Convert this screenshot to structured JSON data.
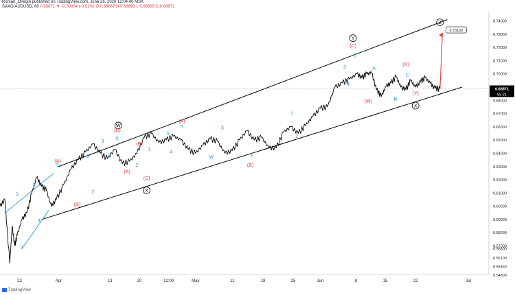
{
  "header": {
    "line1": "Roman_Onegin published on TradingView.com, June 26, 2020 12:04:40 MSK",
    "symbol": "SAXO:AUDUSD, 60",
    "ohlc": "0.68871 ▼ -0.00004 (-0.01%) O:0.68867 H:0.68893 L:0.68865 C:0.68871"
  },
  "footer": {
    "brand": "TradingView"
  },
  "colors": {
    "up_wave": "#2196f3",
    "corrective": "#e53935",
    "line": "#000000",
    "price_tag": "#000000"
  },
  "chart_data": {
    "type": "line",
    "title": "",
    "xlabel": "",
    "ylabel": "",
    "ylim": [
      0.5485,
      0.7465
    ],
    "y_ticks": [
      "0.74000",
      "0.73000",
      "0.72000",
      "0.71000",
      "0.70000",
      "0.69000",
      "0.68000",
      "0.67000",
      "0.66000",
      "0.65000",
      "0.64000",
      "0.63000",
      "0.62000",
      "0.61000",
      "0.60000",
      "0.59000",
      "0.58000",
      "0.57000",
      "0.56800",
      "0.56100",
      "0.55450",
      "0.54800"
    ],
    "x_ticks": [
      {
        "label": "23",
        "x": 0.04
      },
      {
        "label": "Apr",
        "x": 0.12
      },
      {
        "label": "13",
        "x": 0.225
      },
      {
        "label": "20",
        "x": 0.285
      },
      {
        "label": "12:00",
        "x": 0.345
      },
      {
        "label": "May",
        "x": 0.4
      },
      {
        "label": "11",
        "x": 0.475
      },
      {
        "label": "18",
        "x": 0.538
      },
      {
        "label": "25",
        "x": 0.6
      },
      {
        "label": "Jun",
        "x": 0.655
      },
      {
        "label": "8",
        "x": 0.728
      },
      {
        "label": "15",
        "x": 0.788
      },
      {
        "label": "22",
        "x": 0.85
      },
      {
        "label": "Jul",
        "x": 0.958
      }
    ],
    "current_price": "0.68871",
    "countdown": "55:21",
    "target_price": "0.73102",
    "series": [
      {
        "x": [
          0,
          0.01,
          0.02,
          0.025,
          0.03,
          0.035,
          0.045,
          0.055,
          0.065,
          0.075,
          0.085,
          0.095,
          0.105,
          0.115,
          0.13,
          0.145,
          0.16,
          0.175,
          0.19,
          0.205,
          0.22,
          0.235,
          0.25,
          0.265,
          0.28,
          0.295,
          0.31,
          0.325,
          0.34,
          0.355,
          0.37,
          0.385,
          0.4,
          0.415,
          0.43,
          0.445,
          0.46,
          0.475,
          0.49,
          0.505,
          0.52,
          0.535,
          0.55,
          0.565,
          0.58,
          0.595,
          0.61,
          0.625,
          0.64,
          0.655,
          0.67,
          0.685,
          0.7,
          0.715,
          0.73,
          0.74,
          0.75,
          0.76,
          0.77,
          0.78,
          0.79,
          0.8,
          0.81,
          0.82,
          0.83,
          0.84,
          0.85,
          0.86,
          0.87,
          0.88,
          0.89,
          0.9
        ],
        "values": [
          0.6,
          0.605,
          0.557,
          0.585,
          0.57,
          0.578,
          0.59,
          0.595,
          0.61,
          0.622,
          0.615,
          0.612,
          0.6,
          0.605,
          0.616,
          0.628,
          0.635,
          0.641,
          0.647,
          0.64,
          0.636,
          0.643,
          0.632,
          0.634,
          0.64,
          0.652,
          0.655,
          0.648,
          0.65,
          0.653,
          0.65,
          0.643,
          0.64,
          0.646,
          0.651,
          0.649,
          0.64,
          0.642,
          0.65,
          0.657,
          0.65,
          0.652,
          0.644,
          0.644,
          0.656,
          0.66,
          0.655,
          0.661,
          0.668,
          0.674,
          0.675,
          0.69,
          0.693,
          0.696,
          0.7,
          0.697,
          0.7,
          0.701,
          0.688,
          0.683,
          0.691,
          0.693,
          0.698,
          0.69,
          0.688,
          0.695,
          0.69,
          0.694,
          0.697,
          0.693,
          0.689,
          0.6887
        ]
      }
    ],
    "wave_labels": [
      {
        "text": "1",
        "group": "up",
        "x": 0.035,
        "y": 0.608
      },
      {
        "text": "2",
        "group": "up",
        "x": 0.045,
        "y": 0.568
      },
      {
        "text": "3",
        "group": "up",
        "x": 0.07,
        "y": 0.615
      },
      {
        "text": "4",
        "group": "up",
        "x": 0.08,
        "y": 0.588
      },
      {
        "text": "5",
        "group": "up",
        "x": 0.118,
        "y": 0.63
      },
      {
        "text": "(A)",
        "group": "corr",
        "x": 0.118,
        "y": 0.633
      },
      {
        "text": "1",
        "group": "up",
        "x": 0.18,
        "y": 0.637
      },
      {
        "text": "2",
        "group": "up",
        "x": 0.19,
        "y": 0.61
      },
      {
        "text": "(B)",
        "group": "corr",
        "x": 0.158,
        "y": 0.6
      },
      {
        "text": "3",
        "group": "up",
        "x": 0.21,
        "y": 0.648
      },
      {
        "text": "4",
        "group": "up",
        "x": 0.225,
        "y": 0.638
      },
      {
        "text": "5",
        "group": "up",
        "x": 0.24,
        "y": 0.65
      },
      {
        "text": "(C)",
        "group": "corr",
        "x": 0.24,
        "y": 0.656
      },
      {
        "text": "(A)",
        "group": "corr",
        "x": 0.26,
        "y": 0.625
      },
      {
        "text": "(B)",
        "group": "corr",
        "x": 0.285,
        "y": 0.646
      },
      {
        "text": "1",
        "group": "up",
        "x": 0.305,
        "y": 0.642
      },
      {
        "text": "2",
        "group": "up",
        "x": 0.28,
        "y": 0.63
      },
      {
        "text": "(C)",
        "group": "corr",
        "x": 0.3,
        "y": 0.62
      },
      {
        "text": "3",
        "group": "up",
        "x": 0.343,
        "y": 0.654
      },
      {
        "text": "4",
        "group": "up",
        "x": 0.35,
        "y": 0.64
      },
      {
        "text": "5",
        "group": "up",
        "x": 0.372,
        "y": 0.659
      },
      {
        "text": "(A)",
        "group": "corr",
        "x": 0.372,
        "y": 0.663
      },
      {
        "text": "X",
        "group": "up",
        "x": 0.455,
        "y": 0.658
      },
      {
        "text": "W",
        "group": "up",
        "x": 0.432,
        "y": 0.636
      },
      {
        "text": "Y",
        "group": "up",
        "x": 0.515,
        "y": 0.637
      },
      {
        "text": "(B)",
        "group": "corr",
        "x": 0.512,
        "y": 0.63
      },
      {
        "text": "1",
        "group": "up",
        "x": 0.597,
        "y": 0.669
      },
      {
        "text": "2",
        "group": "up",
        "x": 0.607,
        "y": 0.652
      },
      {
        "text": "3",
        "group": "up",
        "x": 0.705,
        "y": 0.704
      },
      {
        "text": "4",
        "group": "up",
        "x": 0.712,
        "y": 0.691
      },
      {
        "text": "5",
        "group": "up",
        "x": 0.726,
        "y": 0.713
      },
      {
        "text": "(C)",
        "group": "corr",
        "x": 0.722,
        "y": 0.72
      },
      {
        "text": "A",
        "group": "up",
        "x": 0.765,
        "y": 0.703
      },
      {
        "text": "(W)",
        "group": "corr",
        "x": 0.753,
        "y": 0.678
      },
      {
        "text": "B",
        "group": "up",
        "x": 0.809,
        "y": 0.68
      },
      {
        "text": "C",
        "group": "up",
        "x": 0.833,
        "y": 0.698
      },
      {
        "text": "(X)",
        "group": "corr",
        "x": 0.83,
        "y": 0.706
      },
      {
        "text": "(Y)",
        "group": "corr",
        "x": 0.85,
        "y": 0.684
      }
    ],
    "circle_labels": [
      {
        "text": "W",
        "x": 0.242,
        "y": 0.661
      },
      {
        "text": "X",
        "x": 0.3,
        "y": 0.612
      },
      {
        "text": "Y",
        "x": 0.722,
        "y": 0.727
      },
      {
        "text": "X",
        "x": 0.85,
        "y": 0.676
      },
      {
        "text": "Z",
        "x": 0.9,
        "y": 0.739
      }
    ]
  }
}
